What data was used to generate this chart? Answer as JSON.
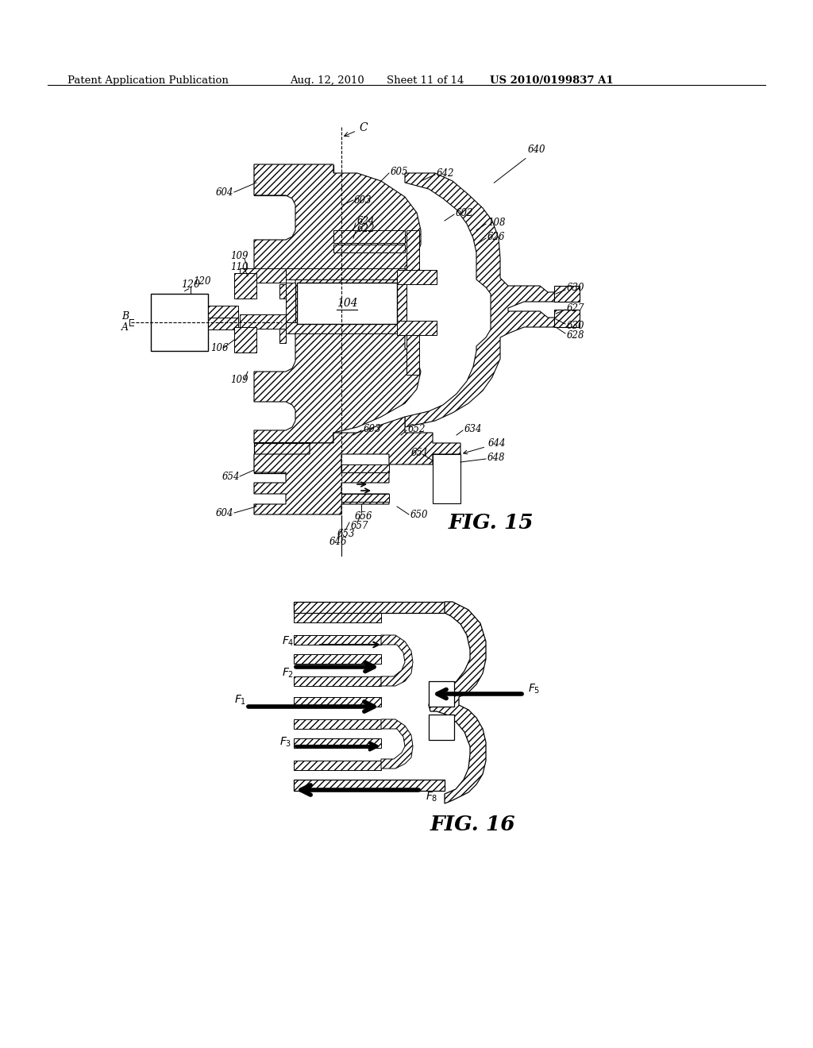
{
  "bg_color": "#ffffff",
  "header_text": "Patent Application Publication",
  "header_date": "Aug. 12, 2010",
  "header_sheet": "Sheet 11 of 14",
  "header_patent": "US 2010/0199837 A1",
  "fig15_title": "FIG. 15",
  "fig16_title": "FIG. 16"
}
